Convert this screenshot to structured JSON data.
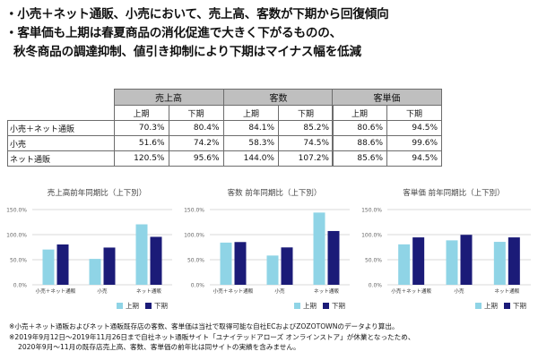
{
  "bullets": [
    "・小売＋ネット通販、小売において、売上高、客数が下期から回復傾向",
    "・客単価も上期は春夏商品の消化促進で大きく下がるものの、",
    "秋冬商品の調達抑制、値引き抑制により下期はマイナス幅を低減"
  ],
  "table": {
    "row_labels": [
      "小売＋ネット通販",
      "小売",
      "ネット通販"
    ],
    "groups": [
      {
        "header": "売上高",
        "sub": [
          "上期",
          "下期"
        ],
        "rows": [
          [
            "70.3%",
            "80.4%"
          ],
          [
            "51.6%",
            "74.2%"
          ],
          [
            "120.5%",
            "95.6%"
          ]
        ]
      },
      {
        "header": "客数",
        "sub": [
          "上期",
          "下期"
        ],
        "rows": [
          [
            "84.1%",
            "85.2%"
          ],
          [
            "58.3%",
            "74.5%"
          ],
          [
            "144.0%",
            "107.2%"
          ]
        ]
      },
      {
        "header": "客単価",
        "sub": [
          "上期",
          "下期"
        ],
        "rows": [
          [
            "80.6%",
            "94.5%"
          ],
          [
            "88.6%",
            "99.6%"
          ],
          [
            "85.6%",
            "94.5%"
          ]
        ]
      }
    ]
  },
  "chart_data": [
    {
      "type": "bar",
      "title": "売上高前年同期比（上下別）",
      "categories": [
        "小売＋ネット通販",
        "小売",
        "ネット通販"
      ],
      "series": [
        {
          "name": "上期",
          "values": [
            70.3,
            51.6,
            120.5
          ]
        },
        {
          "name": "下期",
          "values": [
            80.4,
            74.2,
            95.6
          ]
        }
      ],
      "yticks": [
        "0.0%",
        "50.0%",
        "100.0%",
        "150.0%"
      ],
      "ylim": [
        0,
        150
      ],
      "grid": true
    },
    {
      "type": "bar",
      "title": "客数 前年同期比（上下別）",
      "categories": [
        "小売＋ネット通販",
        "小売",
        "ネット通販"
      ],
      "series": [
        {
          "name": "上期",
          "values": [
            84.1,
            58.3,
            144.0
          ]
        },
        {
          "name": "下期",
          "values": [
            85.2,
            74.5,
            107.2
          ]
        }
      ],
      "yticks": [
        "0.0%",
        "50.0%",
        "100.0%",
        "150.0%"
      ],
      "ylim": [
        0,
        150
      ],
      "grid": true
    },
    {
      "type": "bar",
      "title": "客単価 前年同期比（上下別）",
      "categories": [
        "小売＋ネット通販",
        "小売",
        "ネット通販"
      ],
      "series": [
        {
          "name": "上期",
          "values": [
            80.6,
            88.6,
            85.6
          ]
        },
        {
          "name": "下期",
          "values": [
            94.5,
            99.6,
            94.5
          ]
        }
      ],
      "yticks": [
        "0.0%",
        "50.0%",
        "100.0%",
        "150.0%"
      ],
      "ylim": [
        0,
        150
      ],
      "grid": true
    }
  ],
  "legend": {
    "first": "上期",
    "second": "下期",
    "position": "bottom-right"
  },
  "colors": {
    "first": "#8fd4e6",
    "second": "#1b1b78",
    "grid": "#d9d9d9",
    "header_bg": "#bfbfbf"
  },
  "notes": [
    "※小売＋ネット通販およびネット通販既存店の客数、客単価は当社で取得可能な自社ECおよびZOZOTOWNのデータより算出。",
    "※2019年9月12日～2019年11月26日まで自社ネット通販サイト「ユナイテッドアローズ オンラインストア」が休業となったため、",
    "2020年9月～11月の既存店売上高、客数、客単価の前年比は同サイトの実績を含みません。"
  ]
}
